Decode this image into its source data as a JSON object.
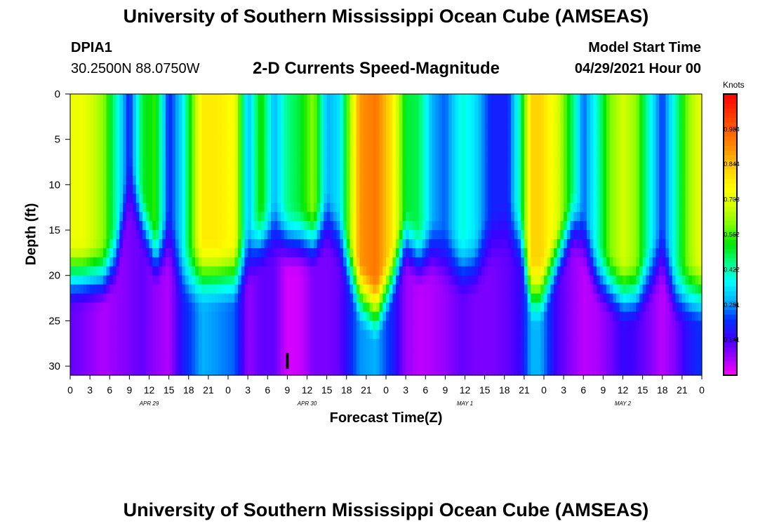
{
  "header": {
    "title_top": "University of Southern Mississippi Ocean Cube (AMSEAS)",
    "title_bottom": "University of Southern Mississippi Ocean Cube (AMSEAS)",
    "station_id": "DPIA1",
    "station_coords": "30.2500N  88.0750W",
    "product_title": "2-D Currents Speed-Magnitude",
    "model_start_label": "Model Start Time",
    "model_start_value": "04/29/2021 Hour 00"
  },
  "chart_data": {
    "type": "heatmap",
    "title": "2-D Currents Speed-Magnitude",
    "xlabel": "Forecast Time(Z)",
    "ylabel": "Depth (ft)",
    "x_range_hours": [
      0,
      96
    ],
    "ylim": [
      31,
      0
    ],
    "x_tick_labels": [
      "0",
      "3",
      "6",
      "9",
      "12",
      "15",
      "18",
      "21",
      "0",
      "3",
      "6",
      "9",
      "12",
      "15",
      "18",
      "21",
      "0",
      "3",
      "6",
      "9",
      "12",
      "15",
      "18",
      "21",
      "0",
      "3",
      "6",
      "9",
      "12",
      "15",
      "18",
      "21",
      "0"
    ],
    "y_ticks": [
      0,
      5,
      10,
      15,
      20,
      25,
      30
    ],
    "date_labels": [
      {
        "label": "APR 29",
        "hour": 12
      },
      {
        "label": "APR 30",
        "hour": 36
      },
      {
        "label": "MAY 1",
        "hour": 60
      },
      {
        "label": "MAY 2",
        "hour": 84
      }
    ],
    "colorbar": {
      "units": "Knots",
      "min": 0.0,
      "max": 1.125,
      "tick_values": [
        0.141,
        0.281,
        0.422,
        0.562,
        0.703,
        0.844,
        0.984
      ],
      "tick_labels": [
        "0.141",
        "0.281",
        "0.422",
        "0.562",
        "0.703",
        "0.844",
        "0.984"
      ],
      "colors": [
        "#ff00ff",
        "#9b00ff",
        "#3c00ff",
        "#0032ff",
        "#00b4ff",
        "#00ffff",
        "#00ff88",
        "#00e600",
        "#78ff00",
        "#d2ff00",
        "#ffff00",
        "#ffd200",
        "#ff9600",
        "#ff6400",
        "#ff3200",
        "#ff0000"
      ]
    },
    "current_time_marker_hour": 33,
    "speed_profile": {
      "hours": [
        0,
        2,
        5,
        7,
        9,
        11,
        13,
        15,
        17,
        20,
        22.5,
        25,
        27,
        29,
        31,
        33,
        35,
        37,
        39,
        41,
        44,
        46.5,
        49,
        51,
        53,
        55,
        57,
        59.5,
        61.5,
        64,
        66.5,
        68.5,
        70,
        71.5,
        74,
        76.5,
        78,
        80,
        82,
        84,
        86,
        88,
        90,
        92,
        94,
        96
      ],
      "surface_knots": [
        0.72,
        0.72,
        0.62,
        0.42,
        0.2,
        0.5,
        0.55,
        0.2,
        0.35,
        0.78,
        0.78,
        0.74,
        0.3,
        0.55,
        0.3,
        0.45,
        0.5,
        0.62,
        0.3,
        0.35,
        0.9,
        0.95,
        0.78,
        0.5,
        0.48,
        0.3,
        0.25,
        0.4,
        0.35,
        0.2,
        0.2,
        0.45,
        0.82,
        0.82,
        0.7,
        0.45,
        0.25,
        0.4,
        0.6,
        0.68,
        0.62,
        0.4,
        0.22,
        0.42,
        0.62,
        0.72
      ],
      "profile_depth_ft": [
        20,
        20,
        20,
        18,
        10,
        14,
        18,
        16,
        20,
        20,
        20,
        20,
        18,
        16,
        15,
        16,
        16,
        16,
        14,
        16,
        22,
        24,
        20,
        16,
        18,
        17,
        18,
        19,
        19,
        16,
        15,
        16,
        22,
        22,
        18,
        14,
        16,
        20,
        21,
        22,
        22,
        20,
        18,
        22,
        22,
        22
      ],
      "bottom_knots": [
        0.12,
        0.1,
        0.06,
        0.08,
        0.1,
        0.12,
        0.08,
        0.06,
        0.18,
        0.3,
        0.28,
        0.25,
        0.08,
        0.12,
        0.12,
        0.03,
        0.04,
        0.1,
        0.1,
        0.12,
        0.28,
        0.3,
        0.2,
        0.08,
        0.05,
        0.06,
        0.08,
        0.12,
        0.1,
        0.1,
        0.12,
        0.16,
        0.3,
        0.3,
        0.14,
        0.08,
        0.05,
        0.06,
        0.1,
        0.16,
        0.14,
        0.1,
        0.05,
        0.1,
        0.18,
        0.22
      ]
    }
  }
}
